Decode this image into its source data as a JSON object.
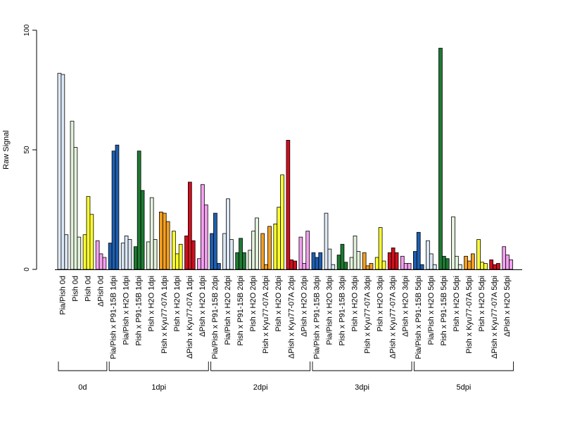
{
  "chart_data": {
    "type": "bar",
    "title": "",
    "xlabel": "",
    "ylabel": "Raw Signal",
    "ylim": [
      0,
      100
    ],
    "yticks": [
      "0",
      "50",
      "100"
    ],
    "grid": false,
    "legend": "none",
    "colors": {
      "light_blue": "#dce8f5",
      "light_green": "#e3f2dc",
      "yellow": "#ffff33",
      "pink": "#f5a0f0",
      "blue": "#1f5fb0",
      "dark_green": "#1e7a32",
      "orange": "#f5a020",
      "red": "#d0101e"
    },
    "categories": [
      {
        "label": "Pia/Pish 0d",
        "color": "light_blue",
        "values": [
          82,
          81.5,
          14.5
        ]
      },
      {
        "label": "Pish 0d",
        "color": "light_green",
        "values": [
          62,
          51,
          13.5
        ]
      },
      {
        "label": "Pish 0d",
        "color": "yellow",
        "values": [
          14.5,
          30.5,
          23
        ]
      },
      {
        "label": "ΔPish 0d",
        "color": "pink",
        "values": [
          12,
          6.5,
          5
        ]
      },
      {
        "label": "Pia/Pish x P91-15B 1dpi",
        "color": "blue",
        "values": [
          11,
          49.5,
          52
        ]
      },
      {
        "label": "Pia/Pish x H2O 1dpi",
        "color": "light_blue",
        "values": [
          11,
          14,
          12.5
        ]
      },
      {
        "label": "Pish x P91-15B 1dpi",
        "color": "dark_green",
        "values": [
          9.5,
          49.5,
          33
        ]
      },
      {
        "label": "Pish x H2O 1dpi",
        "color": "light_green",
        "values": [
          11.5,
          30,
          12.5
        ]
      },
      {
        "label": "Pish x Kyu77-07A 1dpi",
        "color": "orange",
        "values": [
          24,
          23.5,
          20
        ]
      },
      {
        "label": "Pish x H2O 1dpi",
        "color": "yellow",
        "values": [
          16,
          6.5,
          10.5
        ]
      },
      {
        "label": "ΔPish x Kyu77-07A 1dpi",
        "color": "red",
        "values": [
          14,
          36.5,
          12
        ]
      },
      {
        "label": "ΔPish x H2O 1dpi",
        "color": "pink",
        "values": [
          4.5,
          35.5,
          27
        ]
      },
      {
        "label": "Pia/Pish x P91-15B 2dpi",
        "color": "blue",
        "values": [
          15,
          23.5,
          2.5
        ]
      },
      {
        "label": "Pia/Pish x H2O 2dpi",
        "color": "light_blue",
        "values": [
          15,
          29.5,
          12.5
        ]
      },
      {
        "label": "Pish x P91-15B 2dpi",
        "color": "dark_green",
        "values": [
          7,
          13,
          7
        ]
      },
      {
        "label": "Pish x H2O 2dpi",
        "color": "light_green",
        "values": [
          8,
          16,
          21.5
        ]
      },
      {
        "label": "Pish x Kyu77-07A 2dpi",
        "color": "orange",
        "values": [
          15,
          2,
          18
        ]
      },
      {
        "label": "Pish x H2O 2dpi",
        "color": "yellow",
        "values": [
          19,
          26,
          39.5
        ]
      },
      {
        "label": "ΔPish x Kyu77-07A 2dpi",
        "color": "red",
        "values": [
          54,
          4,
          3.5
        ]
      },
      {
        "label": "ΔPish x H2O 2dpi",
        "color": "pink",
        "values": [
          13.5,
          2.5,
          16
        ]
      },
      {
        "label": "Pia/Pish x P91-15B 3dpi",
        "color": "blue",
        "values": [
          7,
          5,
          7
        ]
      },
      {
        "label": "Pia/Pish x H2O 3dpi",
        "color": "light_blue",
        "values": [
          23.5,
          8.5,
          2
        ]
      },
      {
        "label": "Pish x P91-15B 3dpi",
        "color": "dark_green",
        "values": [
          6,
          10.5,
          3
        ]
      },
      {
        "label": "Pish x H2O 3dpi",
        "color": "light_green",
        "values": [
          5,
          14,
          7.5
        ]
      },
      {
        "label": "Pish x Kyu77-07A 3dpi",
        "color": "orange",
        "values": [
          7,
          1.5,
          2.5
        ]
      },
      {
        "label": "Pish x H2O 3dpi",
        "color": "yellow",
        "values": [
          5,
          17.5,
          3.5
        ]
      },
      {
        "label": "ΔPish x Kyu77-07A 3dpi",
        "color": "red",
        "values": [
          7,
          9,
          7
        ]
      },
      {
        "label": "ΔPish x H2O 3dpi",
        "color": "pink",
        "values": [
          5.5,
          2.5,
          2.5
        ]
      },
      {
        "label": "Pia/Pish x P91-15B 5dpi",
        "color": "blue",
        "values": [
          7.5,
          15.5,
          2
        ]
      },
      {
        "label": "Pia/Pish x H2O 5dpi",
        "color": "light_blue",
        "values": [
          12,
          6.5,
          2
        ]
      },
      {
        "label": "Pish x P91-15B 5dpi",
        "color": "dark_green",
        "values": [
          92.5,
          5.5,
          4.5
        ]
      },
      {
        "label": "Pish x H2O 5dpi",
        "color": "light_green",
        "values": [
          22,
          5.5,
          2
        ]
      },
      {
        "label": "Pish x Kyu77-07A 5dpi",
        "color": "orange",
        "values": [
          5.5,
          3.5,
          6.5
        ]
      },
      {
        "label": "Pish x H2O 5dpi",
        "color": "yellow",
        "values": [
          12.5,
          3,
          2.5
        ]
      },
      {
        "label": "ΔPish x Kyu77-07A 5dpi",
        "color": "red",
        "values": [
          4,
          2,
          2.5
        ]
      },
      {
        "label": "ΔPish x H2O 5dpi",
        "color": "pink",
        "values": [
          9.5,
          6,
          4
        ]
      }
    ],
    "groups": [
      {
        "label": "0d",
        "start": 0,
        "end": 3
      },
      {
        "label": "1dpi",
        "start": 4,
        "end": 11
      },
      {
        "label": "2dpi",
        "start": 12,
        "end": 19
      },
      {
        "label": "3dpi",
        "start": 20,
        "end": 27
      },
      {
        "label": "5dpi",
        "start": 28,
        "end": 35
      }
    ]
  }
}
